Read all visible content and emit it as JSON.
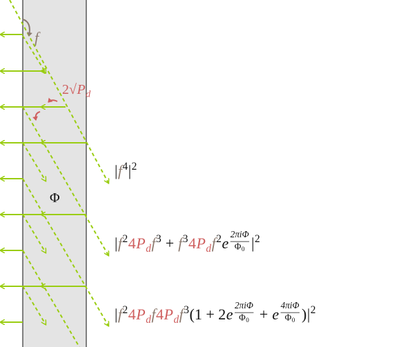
{
  "colors": {
    "f": "#8c7b70",
    "p": "#cf5f5f",
    "k": "#111111",
    "ray": "#9acd12",
    "slab": "#e4e4e4"
  },
  "labels": {
    "f": [
      {
        "t": "f",
        "c": "f",
        "i": true
      }
    ],
    "amp": [
      {
        "t": "2√",
        "c": "p"
      },
      {
        "t": "P",
        "c": "p",
        "i": true
      },
      {
        "t": "d",
        "c": "p",
        "i": true,
        "v": "sub"
      }
    ],
    "phase": [
      {
        "t": "Φ",
        "c": "k"
      }
    ]
  },
  "formulas": [
    [
      {
        "t": "|",
        "c": "k"
      },
      {
        "t": "f",
        "c": "f",
        "i": true
      },
      {
        "t": "4",
        "c": "k",
        "v": "sup"
      },
      {
        "t": "|",
        "c": "k"
      },
      {
        "t": "2",
        "c": "k",
        "v": "sup"
      }
    ],
    [
      {
        "t": "|",
        "c": "k"
      },
      {
        "t": "f",
        "c": "f",
        "i": true
      },
      {
        "t": "2",
        "c": "k",
        "v": "sup"
      },
      {
        "t": "4",
        "c": "p"
      },
      {
        "t": "P",
        "c": "p",
        "i": true
      },
      {
        "t": "d",
        "c": "p",
        "i": true,
        "v": "sub"
      },
      {
        "t": "f",
        "c": "f",
        "i": true
      },
      {
        "t": "3",
        "c": "k",
        "v": "sup"
      },
      {
        "t": " + ",
        "c": "k"
      },
      {
        "t": "f",
        "c": "f",
        "i": true
      },
      {
        "t": "3",
        "c": "k",
        "v": "sup"
      },
      {
        "t": "4",
        "c": "p"
      },
      {
        "t": "P",
        "c": "p",
        "i": true
      },
      {
        "t": "d",
        "c": "p",
        "i": true,
        "v": "sub"
      },
      {
        "t": "f",
        "c": "f",
        "i": true
      },
      {
        "t": "2",
        "c": "k",
        "v": "sup"
      },
      {
        "t": "e",
        "c": "k",
        "i": true
      },
      {
        "num": [
          {
            "t": "2πiΦ",
            "c": "k",
            "i": true
          }
        ],
        "den": [
          {
            "t": "Φ",
            "c": "k"
          },
          {
            "t": "0",
            "c": "k",
            "v": "sub"
          }
        ]
      },
      {
        "t": "|",
        "c": "k"
      },
      {
        "t": "2",
        "c": "k",
        "v": "sup"
      }
    ],
    [
      {
        "t": "|",
        "c": "k"
      },
      {
        "t": "f",
        "c": "f",
        "i": true
      },
      {
        "t": "2",
        "c": "k",
        "v": "sup"
      },
      {
        "t": "4",
        "c": "p"
      },
      {
        "t": "P",
        "c": "p",
        "i": true
      },
      {
        "t": "d",
        "c": "p",
        "i": true,
        "v": "sub"
      },
      {
        "t": "f",
        "c": "f",
        "i": true
      },
      {
        "t": "4",
        "c": "p"
      },
      {
        "t": "P",
        "c": "p",
        "i": true
      },
      {
        "t": "d",
        "c": "p",
        "i": true,
        "v": "sub"
      },
      {
        "t": "f",
        "c": "f",
        "i": true
      },
      {
        "t": "3",
        "c": "k",
        "v": "sup"
      },
      {
        "t": "(1 + 2",
        "c": "k"
      },
      {
        "t": "e",
        "c": "k",
        "i": true
      },
      {
        "num": [
          {
            "t": "2πiΦ",
            "c": "k",
            "i": true
          }
        ],
        "den": [
          {
            "t": "Φ",
            "c": "k"
          },
          {
            "t": "0",
            "c": "k",
            "v": "sub"
          }
        ]
      },
      {
        "t": " + ",
        "c": "k"
      },
      {
        "t": "e",
        "c": "k",
        "i": true
      },
      {
        "num": [
          {
            "t": "4πiΦ",
            "c": "k",
            "i": true
          }
        ],
        "den": [
          {
            "t": "Φ",
            "c": "k"
          },
          {
            "t": "0",
            "c": "k",
            "v": "sub"
          }
        ]
      },
      {
        "t": ")",
        "c": "k"
      },
      {
        "t": "|",
        "c": "k"
      },
      {
        "t": "2",
        "c": "k",
        "v": "sup"
      }
    ]
  ]
}
